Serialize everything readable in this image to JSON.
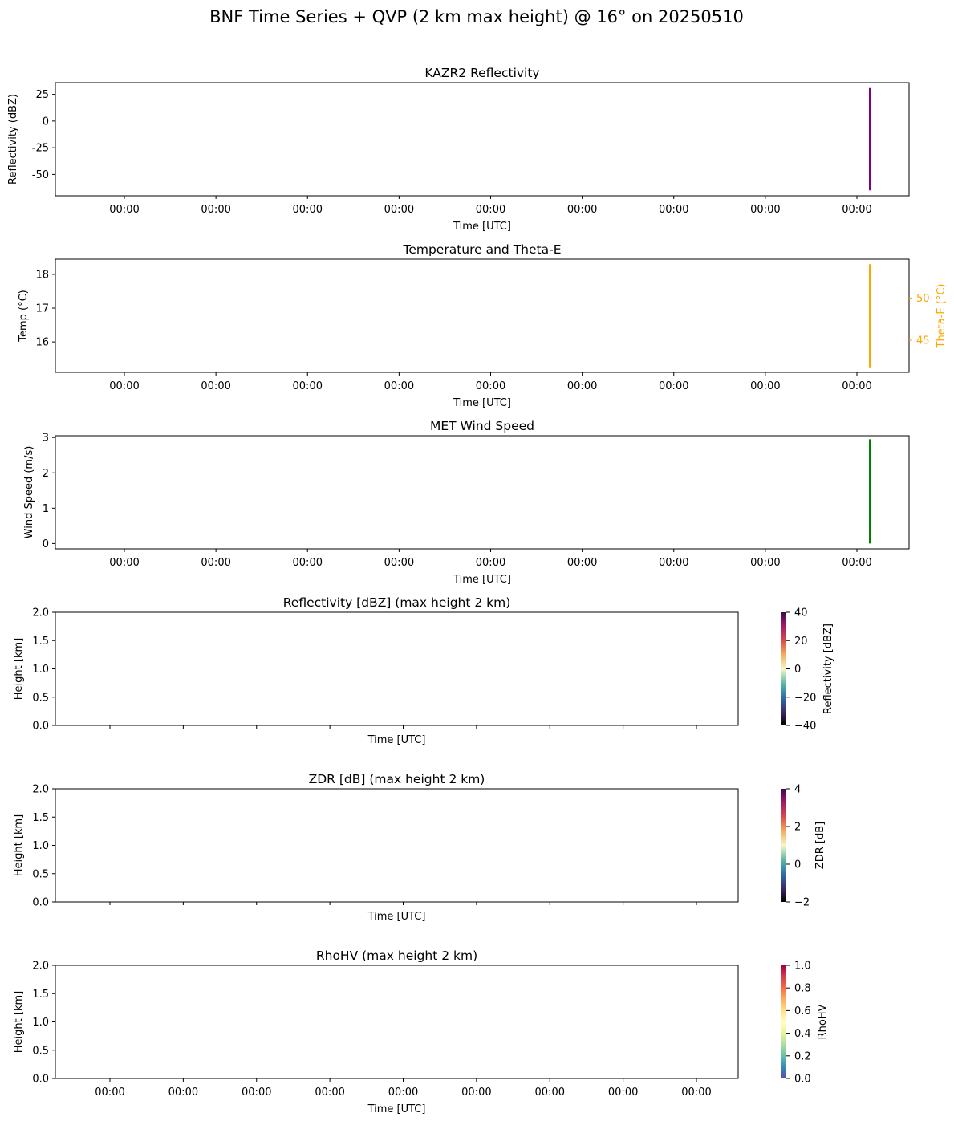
{
  "suptitle": "BNF Time Series + QVP (2 km max height) @ 16° on 20250510",
  "chart_data": [
    {
      "id": "kazr",
      "type": "line",
      "title": "KAZR2 Reflectivity",
      "xlabel": "Time [UTC]",
      "ylabel": "Reflectivity (dBZ)",
      "ylim": [
        -70,
        36
      ],
      "yticks": [
        25,
        0,
        -25,
        -50
      ],
      "xticklabels": [
        "00:00",
        "00:00",
        "00:00",
        "00:00",
        "00:00",
        "00:00",
        "00:00",
        "00:00",
        "00:00"
      ],
      "color": "#800080",
      "series": [
        {
          "name": "reflectivity",
          "x": [
            0.954,
            0.954
          ],
          "values": [
            31,
            -65
          ]
        }
      ]
    },
    {
      "id": "temp",
      "type": "line",
      "title": "Temperature and Theta-E",
      "xlabel": "Time [UTC]",
      "ylabel": "Temp (°C)",
      "ylim": [
        15.1,
        18.45
      ],
      "yticks": [
        18,
        17,
        16
      ],
      "y2label": "Theta-E (°C)",
      "y2lim": [
        41.2,
        54.6
      ],
      "y2ticks": [
        50,
        45
      ],
      "xticklabels": [
        "00:00",
        "00:00",
        "00:00",
        "00:00",
        "00:00",
        "00:00",
        "00:00",
        "00:00",
        "00:00"
      ],
      "color": "#ffa500",
      "series": [
        {
          "name": "Theta-E",
          "axis": "right",
          "x": [
            0.954,
            0.954
          ],
          "values": [
            54.0,
            41.8
          ]
        }
      ]
    },
    {
      "id": "wind",
      "type": "line",
      "title": "MET Wind Speed",
      "xlabel": "Time [UTC]",
      "ylabel": "Wind Speed (m/s)",
      "ylim": [
        -0.15,
        3.05
      ],
      "yticks": [
        3,
        2,
        1,
        0
      ],
      "xticklabels": [
        "00:00",
        "00:00",
        "00:00",
        "00:00",
        "00:00",
        "00:00",
        "00:00",
        "00:00",
        "00:00"
      ],
      "color": "#008000",
      "series": [
        {
          "name": "wind speed",
          "x": [
            0.954,
            0.954
          ],
          "values": [
            2.95,
            0.0
          ]
        }
      ]
    },
    {
      "id": "qvp_ref",
      "type": "heatmap",
      "title": "Reflectivity [dBZ] (max height 2 km)",
      "xlabel": "Time [UTC]",
      "ylabel": "Height [km]",
      "ylim": [
        0,
        2
      ],
      "yticks": [
        "0.0",
        "0.5",
        "1.0",
        "1.5",
        "2.0"
      ],
      "xticklabels": [],
      "colorbar": {
        "label": "Reflectivity [dBZ]",
        "range": [
          -40,
          40
        ],
        "ticks": [
          "40",
          "20",
          "0",
          "−20",
          "−40"
        ],
        "cmap": "ChaseSpectral"
      },
      "values": []
    },
    {
      "id": "qvp_zdr",
      "type": "heatmap",
      "title": "ZDR [dB] (max height 2 km)",
      "xlabel": "Time [UTC]",
      "ylabel": "Height [km]",
      "ylim": [
        0,
        2
      ],
      "yticks": [
        "0.0",
        "0.5",
        "1.0",
        "1.5",
        "2.0"
      ],
      "xticklabels": [],
      "colorbar": {
        "label": "ZDR [dB]",
        "range": [
          -2,
          4
        ],
        "ticks": [
          "4",
          "2",
          "0",
          "−2"
        ],
        "cmap": "ChaseSpectral"
      },
      "values": []
    },
    {
      "id": "qvp_rho",
      "type": "heatmap",
      "title": "RhoHV (max height 2 km)",
      "xlabel": "Time [UTC]",
      "ylabel": "Height [km]",
      "ylim": [
        0,
        2
      ],
      "yticks": [
        "0.0",
        "0.5",
        "1.0",
        "1.5",
        "2.0"
      ],
      "xticklabels": [
        "00:00",
        "00:00",
        "00:00",
        "00:00",
        "00:00",
        "00:00",
        "00:00",
        "00:00",
        "00:00"
      ],
      "colorbar": {
        "label": "RhoHV",
        "range": [
          0,
          1
        ],
        "ticks": [
          "1.0",
          "0.8",
          "0.6",
          "0.4",
          "0.2",
          "0.0"
        ],
        "cmap": "Spectral_r"
      },
      "values": []
    }
  ]
}
